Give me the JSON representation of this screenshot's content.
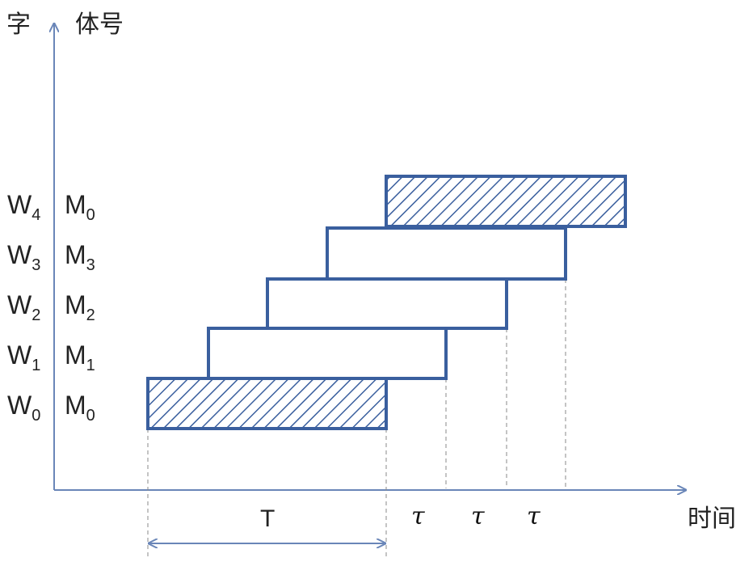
{
  "axes": {
    "y_title_left": "字",
    "y_title_right": "体号",
    "x_title": "时间"
  },
  "rows": [
    {
      "word": "W",
      "word_sub": "0",
      "bank": "M",
      "bank_sub": "0",
      "hatched": true
    },
    {
      "word": "W",
      "word_sub": "1",
      "bank": "M",
      "bank_sub": "1",
      "hatched": false
    },
    {
      "word": "W",
      "word_sub": "2",
      "bank": "M",
      "bank_sub": "2",
      "hatched": false
    },
    {
      "word": "W",
      "word_sub": "3",
      "bank": "M",
      "bank_sub": "3",
      "hatched": false
    },
    {
      "word": "W",
      "word_sub": "4",
      "bank": "M",
      "bank_sub": "0",
      "hatched": true
    }
  ],
  "timing": {
    "period_label": "T",
    "delay_labels": [
      "τ",
      "τ",
      "τ"
    ]
  },
  "colors": {
    "bar_stroke": "#3a5f9e",
    "axis": "#6a86b8",
    "dash": "#8a8a8a"
  }
}
